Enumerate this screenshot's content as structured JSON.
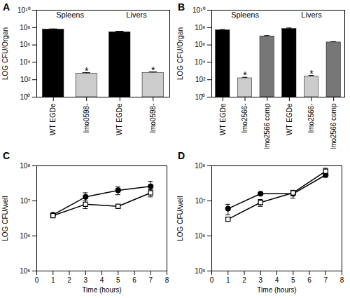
{
  "chart_data": [
    {
      "type": "bar",
      "title": "A",
      "y_label": "LOG CFU/Organ",
      "log": "y",
      "grid": false,
      "categories": [
        "WT EGDe",
        "lmo0598-",
        "WT EGDe",
        "lmo0598-"
      ],
      "groups": [
        "Spleens",
        "Spleens",
        "Livers",
        "Livers"
      ],
      "values": [
        60000000,
        500,
        30000000,
        600
      ],
      "errors": [
        10000000,
        150,
        8000000,
        200
      ],
      "bar_annotations": [
        null,
        "*",
        null,
        "*"
      ],
      "colors": [
        "#000000",
        "#cccccc",
        "#000000",
        "#cccccc"
      ],
      "ylim": [
        1,
        10000000000
      ],
      "yticks": [
        {
          "value": 1,
          "label": "10⁰"
        },
        {
          "value": 100,
          "label": "10²"
        },
        {
          "value": 10000,
          "label": "10⁴"
        },
        {
          "value": 1000000,
          "label": "10⁶"
        },
        {
          "value": 100000000,
          "label": "10⁸"
        },
        {
          "value": 10000000000,
          "label": "10¹⁰"
        }
      ]
    },
    {
      "type": "bar",
      "title": "B",
      "y_label": "LOG CFU/Organ",
      "log": "y",
      "grid": false,
      "categories": [
        "WT EGDe",
        "lmo2566-",
        "lmo2566 comp",
        "WT EGDe",
        "lmo2566-",
        "lmo2566 comp"
      ],
      "groups": [
        "Spleens",
        "Spleens",
        "Spleens",
        "Livers",
        "Livers",
        "Livers"
      ],
      "values": [
        50000000,
        150,
        10000000,
        70000000,
        250,
        2000000
      ],
      "errors": [
        10000000,
        40,
        2000000,
        20000000,
        60,
        400000
      ],
      "bar_annotations": [
        null,
        "*",
        null,
        null,
        "*",
        null
      ],
      "colors": [
        "#000000",
        "#cccccc",
        "#777777",
        "#000000",
        "#cccccc",
        "#777777"
      ],
      "ylim": [
        1,
        10000000000
      ],
      "yticks": [
        {
          "value": 1,
          "label": "10⁰"
        },
        {
          "value": 100,
          "label": "10²"
        },
        {
          "value": 10000,
          "label": "10⁴"
        },
        {
          "value": 1000000,
          "label": "10⁶"
        },
        {
          "value": 100000000,
          "label": "10⁸"
        },
        {
          "value": 10000000000,
          "label": "10¹⁰"
        }
      ]
    },
    {
      "type": "line",
      "title": "C",
      "x_label": "Time (hours)",
      "y_label": "LOG CFU/well",
      "log": "y",
      "grid": false,
      "x": [
        1,
        3,
        5,
        7
      ],
      "series": [
        {
          "color": "#000000",
          "marker": "filled-circle",
          "values": [
            4000000,
            13000000,
            20000000,
            26000000
          ],
          "errors": [
            500000,
            4000000,
            5000000,
            10000000
          ]
        },
        {
          "color": "#000000",
          "marker": "open-square",
          "values": [
            3800000,
            8000000,
            7000000,
            17000000
          ],
          "errors": [
            400000,
            2000000,
            500000,
            4000000
          ]
        }
      ],
      "xlim": [
        0,
        8
      ],
      "xticks": [
        0,
        1,
        2,
        3,
        4,
        5,
        6,
        7,
        8
      ],
      "ylim": [
        100000,
        100000000
      ],
      "yticks": [
        {
          "value": 100000,
          "label": "10⁵"
        },
        {
          "value": 1000000,
          "label": "10⁶"
        },
        {
          "value": 10000000,
          "label": "10⁷"
        },
        {
          "value": 100000000,
          "label": "10⁸"
        }
      ]
    },
    {
      "type": "line",
      "title": "D",
      "x_label": "Time (hours)",
      "y_label": "LOG CFU/well",
      "log": "y",
      "grid": false,
      "x": [
        1,
        3,
        5,
        7
      ],
      "series": [
        {
          "color": "#000000",
          "marker": "filled-circle",
          "values": [
            6000000,
            16000000,
            16000000,
            55000000
          ],
          "errors": [
            2000000,
            1000000,
            4000000,
            8000000
          ]
        },
        {
          "color": "#000000",
          "marker": "open-square",
          "values": [
            3000000,
            9000000,
            17000000,
            70000000
          ],
          "errors": [
            400000,
            2000000,
            3000000,
            15000000
          ]
        }
      ],
      "xlim": [
        0,
        8
      ],
      "xticks": [
        0,
        1,
        2,
        3,
        4,
        5,
        6,
        7,
        8
      ],
      "ylim": [
        100000,
        100000000
      ],
      "yticks": [
        {
          "value": 100000,
          "label": "10⁵"
        },
        {
          "value": 1000000,
          "label": "10⁶"
        },
        {
          "value": 10000000,
          "label": "10⁷"
        },
        {
          "value": 100000000,
          "label": "10⁸"
        }
      ]
    }
  ]
}
